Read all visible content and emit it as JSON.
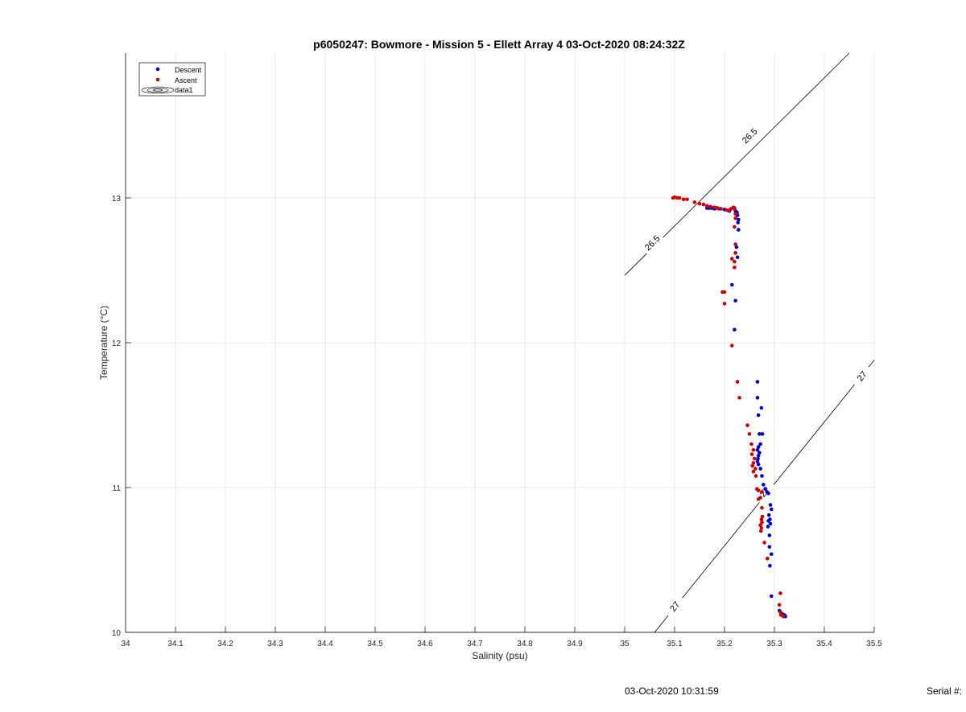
{
  "footer": {
    "timestamp": "03-Oct-2020 10:31:59",
    "serial": "Serial #:"
  },
  "chart_data": {
    "type": "scatter",
    "title": "p6050247: Bowmore - Mission 5 - Ellett Array 4 03-Oct-2020 08:24:32Z",
    "xlabel": "Salinity (psu)",
    "ylabel": "Temperature (°C)",
    "xlim": [
      34,
      35.5
    ],
    "ylim": [
      10,
      14
    ],
    "xticks": [
      "34",
      "34.1",
      "34.2",
      "34.3",
      "34.4",
      "34.5",
      "34.6",
      "34.7",
      "34.8",
      "34.9",
      "35",
      "35.1",
      "35.2",
      "35.3",
      "35.4",
      "35.5"
    ],
    "yticks": [
      "10",
      "11",
      "12",
      "13"
    ],
    "grid": true,
    "legend": {
      "position": "top-left",
      "entries": [
        "Descent",
        "Ascent",
        "data1"
      ]
    },
    "colors": {
      "descent": "#0000cc",
      "ascent": "#cc0000",
      "contour": "#000000",
      "grid": "#e3e3e3",
      "axis": "#262626"
    },
    "series": [
      {
        "name": "Descent",
        "points": [
          [
            35.165,
            12.93
          ],
          [
            35.17,
            12.93
          ],
          [
            35.175,
            12.93
          ],
          [
            35.18,
            12.925
          ],
          [
            35.185,
            12.93
          ],
          [
            35.19,
            12.925
          ],
          [
            35.2,
            12.92
          ],
          [
            35.21,
            12.91
          ],
          [
            35.22,
            12.93
          ],
          [
            35.222,
            12.91
          ],
          [
            35.225,
            12.9
          ],
          [
            35.226,
            12.88
          ],
          [
            35.228,
            12.85
          ],
          [
            35.227,
            12.83
          ],
          [
            35.228,
            12.78
          ],
          [
            35.224,
            12.66
          ],
          [
            35.222,
            12.62
          ],
          [
            35.226,
            12.59
          ],
          [
            35.215,
            12.4
          ],
          [
            35.222,
            12.29
          ],
          [
            35.22,
            12.09
          ],
          [
            35.266,
            11.73
          ],
          [
            35.266,
            11.62
          ],
          [
            35.274,
            11.55
          ],
          [
            35.268,
            11.5
          ],
          [
            35.27,
            11.37
          ],
          [
            35.276,
            11.37
          ],
          [
            35.272,
            11.3
          ],
          [
            35.268,
            11.28
          ],
          [
            35.266,
            11.26
          ],
          [
            35.27,
            11.24
          ],
          [
            35.268,
            11.22
          ],
          [
            35.267,
            11.2
          ],
          [
            35.266,
            11.18
          ],
          [
            35.268,
            11.16
          ],
          [
            35.272,
            11.13
          ],
          [
            35.275,
            11.08
          ],
          [
            35.278,
            11.02
          ],
          [
            35.282,
            10.99
          ],
          [
            35.285,
            10.97
          ],
          [
            35.288,
            10.96
          ],
          [
            35.292,
            10.88
          ],
          [
            35.294,
            10.85
          ],
          [
            35.289,
            10.81
          ],
          [
            35.291,
            10.78
          ],
          [
            35.288,
            10.77
          ],
          [
            35.292,
            10.75
          ],
          [
            35.287,
            10.73
          ],
          [
            35.29,
            10.67
          ],
          [
            35.29,
            10.59
          ],
          [
            35.294,
            10.54
          ],
          [
            35.291,
            10.46
          ],
          [
            35.294,
            10.25
          ],
          [
            35.31,
            10.15
          ],
          [
            35.315,
            10.13
          ],
          [
            35.32,
            10.12
          ],
          [
            35.322,
            10.11
          ]
        ]
      },
      {
        "name": "Ascent",
        "points": [
          [
            35.097,
            13.0
          ],
          [
            35.1,
            13.005
          ],
          [
            35.105,
            13.0
          ],
          [
            35.11,
            13.0
          ],
          [
            35.118,
            12.99
          ],
          [
            35.125,
            12.99
          ],
          [
            35.14,
            12.97
          ],
          [
            35.15,
            12.96
          ],
          [
            35.158,
            12.955
          ],
          [
            35.165,
            12.945
          ],
          [
            35.172,
            12.94
          ],
          [
            35.18,
            12.935
          ],
          [
            35.186,
            12.93
          ],
          [
            35.193,
            12.925
          ],
          [
            35.205,
            12.915
          ],
          [
            35.21,
            12.915
          ],
          [
            35.213,
            12.925
          ],
          [
            35.218,
            12.935
          ],
          [
            35.22,
            12.925
          ],
          [
            35.222,
            12.89
          ],
          [
            35.222,
            12.86
          ],
          [
            35.22,
            12.8
          ],
          [
            35.222,
            12.68
          ],
          [
            35.222,
            12.62
          ],
          [
            35.215,
            12.58
          ],
          [
            35.22,
            12.56
          ],
          [
            35.22,
            12.52
          ],
          [
            35.196,
            12.35
          ],
          [
            35.2,
            12.35
          ],
          [
            35.2,
            12.27
          ],
          [
            35.215,
            11.98
          ],
          [
            35.226,
            11.73
          ],
          [
            35.23,
            11.62
          ],
          [
            35.246,
            11.43
          ],
          [
            35.25,
            11.37
          ],
          [
            35.254,
            11.3
          ],
          [
            35.258,
            11.26
          ],
          [
            35.255,
            11.23
          ],
          [
            35.26,
            11.2
          ],
          [
            35.258,
            11.17
          ],
          [
            35.256,
            11.15
          ],
          [
            35.262,
            11.13
          ],
          [
            35.258,
            11.11
          ],
          [
            35.263,
            11.08
          ],
          [
            35.265,
            10.99
          ],
          [
            35.268,
            10.98
          ],
          [
            35.275,
            10.97
          ],
          [
            35.272,
            10.93
          ],
          [
            35.268,
            10.92
          ],
          [
            35.275,
            10.86
          ],
          [
            35.276,
            10.8
          ],
          [
            35.274,
            10.78
          ],
          [
            35.275,
            10.76
          ],
          [
            35.272,
            10.74
          ],
          [
            35.274,
            10.72
          ],
          [
            35.273,
            10.7
          ],
          [
            35.28,
            10.62
          ],
          [
            35.286,
            10.51
          ],
          [
            35.312,
            10.27
          ],
          [
            35.31,
            10.19
          ],
          [
            35.312,
            10.14
          ],
          [
            35.313,
            10.12
          ],
          [
            35.318,
            10.11
          ]
        ]
      }
    ],
    "isopycnals": [
      {
        "label": "26.5",
        "line": [
          [
            35.0,
            12.465
          ],
          [
            35.45,
            14.0
          ]
        ],
        "label_positions": [
          [
            35.055,
            12.69
          ],
          [
            35.25,
            13.43
          ]
        ]
      },
      {
        "label": "27",
        "line": [
          [
            35.06,
            10.0
          ],
          [
            35.5,
            11.88
          ]
        ],
        "label_positions": [
          [
            35.1,
            10.18
          ],
          [
            35.28,
            10.97
          ],
          [
            35.475,
            11.77
          ]
        ]
      }
    ]
  }
}
